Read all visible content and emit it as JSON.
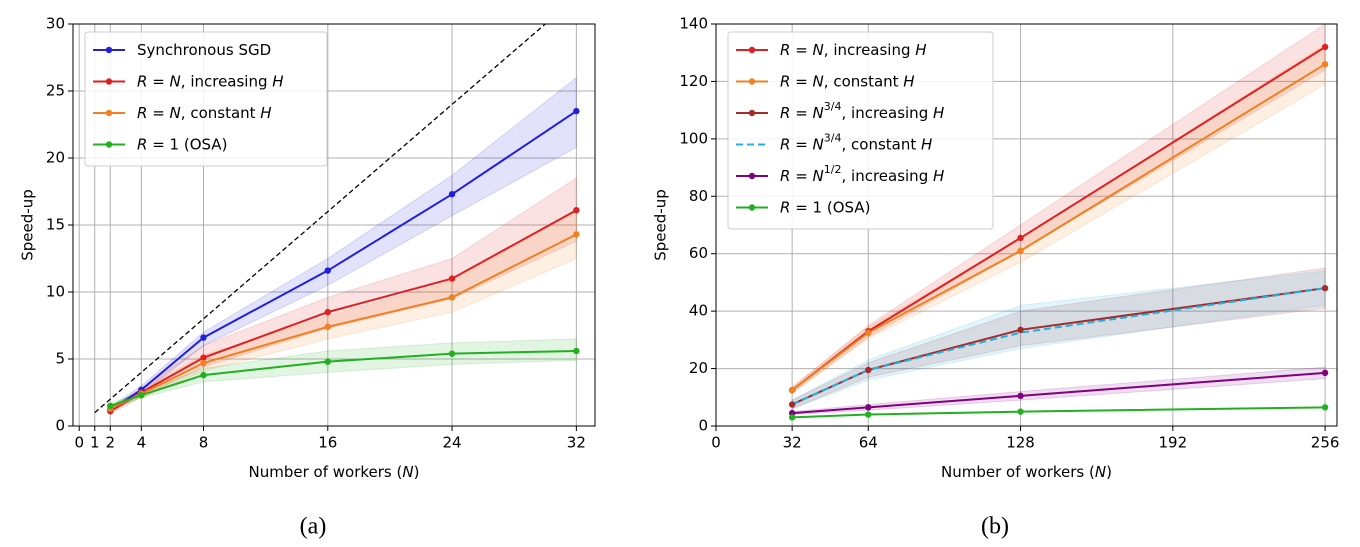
{
  "chart_data": [
    {
      "type": "line",
      "caption": "(a)",
      "x_label": "Number of workers (N)",
      "y_label": "Speed-up",
      "xlim": [
        -0.4,
        33.2
      ],
      "ylim": [
        0,
        30
      ],
      "xticks": [
        0,
        1,
        2,
        4,
        8,
        16,
        24,
        32
      ],
      "yticks": [
        0,
        5,
        10,
        15,
        20,
        25,
        30
      ],
      "grid": true,
      "legend": "upper left",
      "series": [
        {
          "name": "Synchronous SGD",
          "color": "#2020dd",
          "x": [
            2,
            4,
            8,
            16,
            24,
            32
          ],
          "values": [
            1.2,
            2.7,
            6.6,
            11.6,
            17.3,
            23.5
          ],
          "band_lower": [
            1.0,
            2.4,
            6.0,
            10.5,
            15.7,
            20.8
          ],
          "band_upper": [
            1.4,
            3.0,
            7.0,
            12.5,
            18.7,
            26.0
          ]
        },
        {
          "name": "R = N, increasing H",
          "color": "#e02020",
          "x": [
            2,
            4,
            8,
            16,
            24,
            32
          ],
          "values": [
            1.1,
            2.5,
            5.1,
            8.5,
            11.0,
            16.1
          ],
          "band_lower": [
            0.9,
            2.2,
            4.4,
            7.3,
            9.5,
            13.8
          ],
          "band_upper": [
            1.3,
            2.8,
            6.0,
            9.6,
            12.5,
            18.5
          ]
        },
        {
          "name": "R = N, constant H",
          "color": "#f08020",
          "x": [
            2,
            4,
            8,
            16,
            24,
            32
          ],
          "values": [
            1.3,
            2.4,
            4.7,
            7.4,
            9.6,
            14.3
          ],
          "band_lower": [
            1.1,
            2.1,
            4.1,
            6.5,
            8.5,
            12.5
          ],
          "band_upper": [
            1.5,
            2.7,
            5.3,
            8.2,
            10.8,
            16.0
          ]
        },
        {
          "name": "R = 1 (OSA)",
          "color": "#20b020",
          "x": [
            2,
            4,
            8,
            16,
            24,
            32
          ],
          "values": [
            1.5,
            2.3,
            3.8,
            4.8,
            5.4,
            5.6
          ],
          "band_lower": [
            1.3,
            2.1,
            3.3,
            4.0,
            4.6,
            4.9
          ],
          "band_upper": [
            1.7,
            2.5,
            4.3,
            5.6,
            6.2,
            6.5
          ]
        },
        {
          "color": "#000000",
          "dash": true,
          "markers": false,
          "x": [
            1,
            30
          ],
          "values": [
            1,
            30
          ]
        }
      ]
    },
    {
      "type": "line",
      "caption": "(b)",
      "x_label": "Number of workers (N)",
      "y_label": "Speed-up",
      "xlim": [
        0,
        261
      ],
      "ylim": [
        0,
        140
      ],
      "xticks": [
        0,
        32,
        64,
        128,
        192,
        256
      ],
      "yticks": [
        0,
        20,
        40,
        60,
        80,
        100,
        120,
        140
      ],
      "grid": true,
      "legend": "upper left",
      "series": [
        {
          "name": "R = N, increasing H",
          "color": "#e02020",
          "x": [
            32,
            64,
            128,
            256
          ],
          "values": [
            12.5,
            33,
            65.5,
            132
          ],
          "band_lower": [
            11.5,
            31,
            61,
            124
          ],
          "band_upper": [
            13.5,
            35,
            70,
            140
          ]
        },
        {
          "name": "R = N, constant H",
          "color": "#f08020",
          "x": [
            32,
            64,
            128,
            256
          ],
          "values": [
            12.5,
            32.5,
            61,
            126
          ],
          "band_lower": [
            11.5,
            30.5,
            57,
            119
          ],
          "band_upper": [
            13.5,
            34.5,
            65,
            133
          ]
        },
        {
          "name": "R = N^{3/4}, increasing H",
          "color": "#a52a2a",
          "x": [
            32,
            64,
            128,
            256
          ],
          "values": [
            7.5,
            19.5,
            33.5,
            48
          ],
          "band_lower": [
            6,
            17,
            28,
            41
          ],
          "band_upper": [
            9,
            22,
            40,
            55
          ]
        },
        {
          "name": "R = N^{3/4}, constant H",
          "color": "#20b0e0",
          "dash": true,
          "markers": false,
          "x": [
            32,
            64,
            128,
            256
          ],
          "values": [
            7.5,
            19.5,
            32.5,
            48
          ],
          "band_lower": [
            6,
            16,
            27,
            42
          ],
          "band_upper": [
            9,
            23,
            42,
            54
          ]
        },
        {
          "name": "R = N^{1/2}, increasing H",
          "color": "#800080",
          "x": [
            32,
            64,
            128,
            256
          ],
          "values": [
            4.5,
            6.5,
            10.5,
            18.5
          ],
          "band_lower": [
            4,
            5.5,
            9,
            16.5
          ],
          "band_upper": [
            5,
            7.5,
            12,
            20.5
          ]
        },
        {
          "name": "R = 1 (OSA)",
          "color": "#20b020",
          "x": [
            32,
            64,
            128,
            256
          ],
          "values": [
            3,
            4,
            5,
            6.5
          ]
        }
      ]
    }
  ]
}
